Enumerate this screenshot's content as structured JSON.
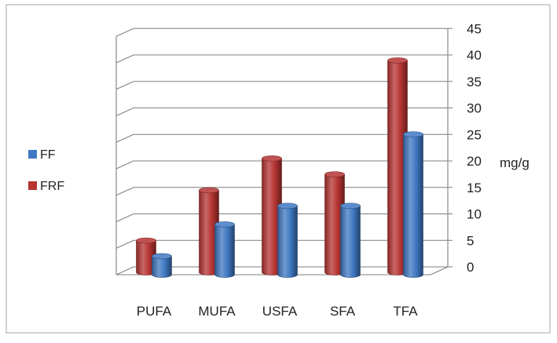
{
  "chart_data": {
    "type": "bar",
    "categories": [
      "PUFA",
      "MUFA",
      "USFA",
      "SFA",
      "TFA"
    ],
    "series": [
      {
        "name": "FF",
        "values": [
          3.5,
          9.5,
          13,
          13,
          26.5
        ],
        "color": "#3f78c2"
      },
      {
        "name": "FRF",
        "values": [
          6,
          15.5,
          21.5,
          18.5,
          40
        ],
        "color": "#b53432"
      }
    ],
    "legend_order": [
      "FF",
      "FRF"
    ],
    "ylabel": "mg/g",
    "ylim": [
      0,
      45
    ],
    "yticks": [
      0,
      5,
      10,
      15,
      20,
      25,
      30,
      35,
      40,
      45
    ],
    "grid": true,
    "y_axis_side": "right",
    "legend_position": "left",
    "style": "3d-cylinder"
  }
}
